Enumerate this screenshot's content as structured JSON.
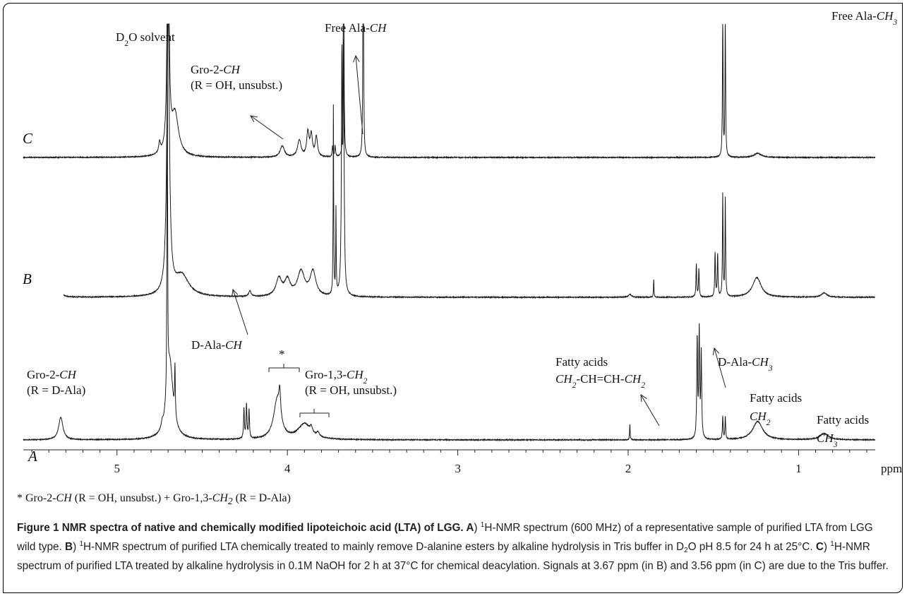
{
  "chart_data": {
    "type": "line",
    "xlabel": "ppm",
    "xlim": [
      5.55,
      0.55
    ],
    "x_axis_reversed": true,
    "x_ticks": [
      5,
      4,
      3,
      2,
      1
    ],
    "x_tick_labels": [
      "5",
      "4",
      "3",
      "2",
      "1"
    ],
    "grid": false,
    "legend": "none",
    "series": [
      {
        "name": "A",
        "peaks": [
          {
            "ppm": 5.33,
            "height": 32,
            "width": 0.015
          },
          {
            "ppm": 4.735,
            "height": 8,
            "width": 0.006
          },
          {
            "ppm": 4.705,
            "height": 600,
            "width": 0.0018
          },
          {
            "ppm": 4.69,
            "height": 110,
            "width": 0.022
          },
          {
            "ppm": 4.66,
            "height": 70,
            "width": 0.0025
          },
          {
            "ppm": 4.255,
            "height": 42,
            "width": 0.003
          },
          {
            "ppm": 4.24,
            "height": 48,
            "width": 0.003
          },
          {
            "ppm": 4.225,
            "height": 40,
            "width": 0.003
          },
          {
            "ppm": 4.06,
            "height": 55,
            "width": 0.025
          },
          {
            "ppm": 4.045,
            "height": 35,
            "width": 0.006
          },
          {
            "ppm": 3.9,
            "height": 22,
            "width": 0.045
          },
          {
            "ppm": 3.86,
            "height": 8,
            "width": 0.008
          },
          {
            "ppm": 3.82,
            "height": 6,
            "width": 0.01
          },
          {
            "ppm": 1.99,
            "height": 22,
            "width": 0.002
          },
          {
            "ppm": 1.595,
            "height": 140,
            "width": 0.003
          },
          {
            "ppm": 1.583,
            "height": 150,
            "width": 0.003
          },
          {
            "ppm": 1.571,
            "height": 120,
            "width": 0.003
          },
          {
            "ppm": 1.445,
            "height": 32,
            "width": 0.0025
          },
          {
            "ppm": 1.43,
            "height": 32,
            "width": 0.0025
          },
          {
            "ppm": 1.24,
            "height": 26,
            "width": 0.035
          },
          {
            "ppm": 0.85,
            "height": 9,
            "width": 0.03
          }
        ]
      },
      {
        "name": "B",
        "peaks": [
          {
            "ppm": 5.33,
            "height": 6,
            "width": 0.018
          },
          {
            "ppm": 4.7,
            "height": 400,
            "width": 0.009
          },
          {
            "ppm": 4.62,
            "height": 30,
            "width": 0.05
          },
          {
            "ppm": 4.22,
            "height": 8,
            "width": 0.008
          },
          {
            "ppm": 4.05,
            "height": 25,
            "width": 0.02
          },
          {
            "ppm": 4.0,
            "height": 22,
            "width": 0.02
          },
          {
            "ppm": 3.92,
            "height": 35,
            "width": 0.025
          },
          {
            "ppm": 3.85,
            "height": 35,
            "width": 0.02
          },
          {
            "ppm": 3.73,
            "height": 270,
            "width": 0.0018
          },
          {
            "ppm": 3.715,
            "height": 120,
            "width": 0.0018
          },
          {
            "ppm": 3.68,
            "height": 320,
            "width": 0.0035
          },
          {
            "ppm": 3.67,
            "height": 330,
            "width": 0.0035
          },
          {
            "ppm": 1.99,
            "height": 4,
            "width": 0.01
          },
          {
            "ppm": 1.85,
            "height": 25,
            "width": 0.0018
          },
          {
            "ppm": 1.6,
            "height": 46,
            "width": 0.0025
          },
          {
            "ppm": 1.585,
            "height": 40,
            "width": 0.0025
          },
          {
            "ppm": 1.49,
            "height": 62,
            "width": 0.0025
          },
          {
            "ppm": 1.475,
            "height": 60,
            "width": 0.0025
          },
          {
            "ppm": 1.445,
            "height": 145,
            "width": 0.0022
          },
          {
            "ppm": 1.43,
            "height": 140,
            "width": 0.0022
          },
          {
            "ppm": 1.245,
            "height": 28,
            "width": 0.03
          },
          {
            "ppm": 0.85,
            "height": 6,
            "width": 0.02
          }
        ]
      },
      {
        "name": "C",
        "peaks": [
          {
            "ppm": 4.75,
            "height": 15,
            "width": 0.006
          },
          {
            "ppm": 4.7,
            "height": 400,
            "width": 0.006
          },
          {
            "ppm": 4.66,
            "height": 60,
            "width": 0.025
          },
          {
            "ppm": 4.03,
            "height": 16,
            "width": 0.015
          },
          {
            "ppm": 3.93,
            "height": 24,
            "width": 0.012
          },
          {
            "ppm": 3.88,
            "height": 34,
            "width": 0.008
          },
          {
            "ppm": 3.86,
            "height": 30,
            "width": 0.008
          },
          {
            "ppm": 3.83,
            "height": 28,
            "width": 0.008
          },
          {
            "ppm": 3.735,
            "height": 15,
            "width": 0.003
          },
          {
            "ppm": 3.72,
            "height": 16,
            "width": 0.003
          },
          {
            "ppm": 3.67,
            "height": 400,
            "width": 0.0022
          },
          {
            "ppm": 3.555,
            "height": 400,
            "width": 0.0022
          },
          {
            "ppm": 1.445,
            "height": 200,
            "width": 0.0022
          },
          {
            "ppm": 1.43,
            "height": 198,
            "width": 0.0022
          },
          {
            "ppm": 1.24,
            "height": 6,
            "width": 0.025
          }
        ]
      }
    ],
    "annotations": [
      {
        "ppm": 4.69,
        "lines": [
          "D<sub>2</sub>O solvent"
        ]
      },
      {
        "ppm": 3.73,
        "lines": [
          "Free Ala-<i>CH</i>"
        ]
      },
      {
        "ppm": 4.02,
        "lines": [
          "Gro-2-<i>CH</i>",
          "(R = OH, unsubst.)"
        ]
      },
      {
        "ppm": 1.44,
        "lines": [
          "Free Ala-<i>CH<sub>3</sub></i>"
        ]
      },
      {
        "ppm": 5.33,
        "lines": [
          "Gro-2-<i>CH</i>",
          "(R = D-Ala)"
        ]
      },
      {
        "ppm": 4.25,
        "lines": [
          "D-Ala-<i>CH</i>"
        ]
      },
      {
        "ppm": 4.05,
        "lines": [
          "*"
        ]
      },
      {
        "ppm": 3.86,
        "lines": [
          "Gro-1,3-<i>CH<sub>2</sub></i>",
          "(R = OH, unsubst.)"
        ]
      },
      {
        "ppm": 1.99,
        "lines": [
          "Fatty acids",
          "<i>CH<sub>2</sub></i>-CH=CH-<i>CH<sub>2</sub></i>"
        ]
      },
      {
        "ppm": 1.58,
        "lines": [
          "D-Ala-<i>CH<sub>3</sub></i>"
        ]
      },
      {
        "ppm": 1.24,
        "lines": [
          "Fatty acids",
          "<i>CH<sub>2</sub></i>"
        ]
      },
      {
        "ppm": 0.85,
        "lines": [
          "Fatty acids",
          "<i>CH<sub>3</sub></i>"
        ]
      }
    ]
  },
  "footnote": "* Gro-2-<i>CH</i> (R = OH, unsubst.) + Gro-1,3-<i>CH<sub>2</sub></i> (R = D-Ala)",
  "caption": "<b>Figure 1 NMR spectra of native and chemically modified lipoteichoic acid (LTA) of LGG. A</b>) <span class=\"sup\">1</span>H-NMR spectrum (600 MHz) of a representative sample of purified LTA from LGG wild type. <b>B</b>) <span class=\"sup\">1</span>H-NMR spectrum of purified LTA chemically treated to mainly remove D-alanine esters by alkaline hydrolysis in Tris buffer in D<span class=\"sub\">2</span>O pH 8.5 for 24 h at 25°C. <b>C</b>) <span class=\"sup\">1</span>H-NMR spectrum of purified LTA treated by alkaline hydrolysis in 0.1M NaOH for 2 h at 37°C for chemical deacylation. Signals at 3.67 ppm (in B) and 3.56 ppm (in C) are due to the Tris buffer."
}
